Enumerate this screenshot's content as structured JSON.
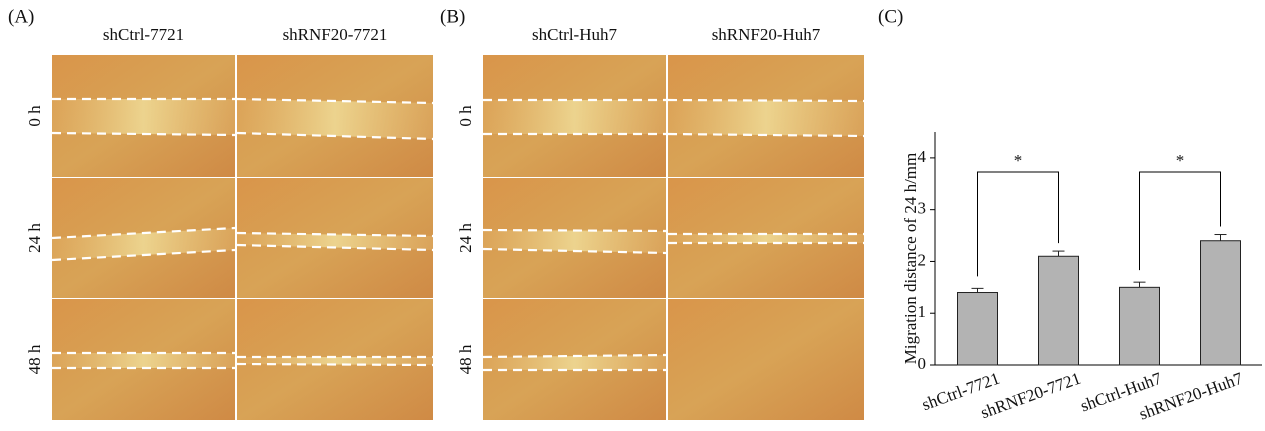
{
  "panel_a": {
    "label": "(A)",
    "columns": [
      "shCtrl-7721",
      "shRNF20-7721"
    ],
    "rows": [
      "0 h",
      "24 h",
      "48 h"
    ]
  },
  "panel_b": {
    "label": "(B)",
    "columns": [
      "shCtrl-Huh7",
      "shRNF20-Huh7"
    ],
    "rows": [
      "0 h",
      "24 h",
      "48 h"
    ]
  },
  "panel_c": {
    "label": "(C)"
  },
  "chart_data": {
    "type": "bar",
    "y_label": "Migration distance of 24 h/mm",
    "categories": [
      "shCtrl-7721",
      "shRNF20-7721",
      "shCtrl-Huh7",
      "shRNF20-Huh7"
    ],
    "values": [
      1.4,
      2.1,
      1.5,
      2.4
    ],
    "errors": [
      0.08,
      0.1,
      0.1,
      0.12
    ],
    "color": "#b3b3b3",
    "ylim": [
      0,
      4.5
    ],
    "yticks": [
      0,
      1,
      2,
      3,
      4
    ],
    "significance": [
      {
        "pair": [
          0,
          1
        ],
        "label": "*"
      },
      {
        "pair": [
          2,
          3
        ],
        "label": "*"
      }
    ]
  }
}
